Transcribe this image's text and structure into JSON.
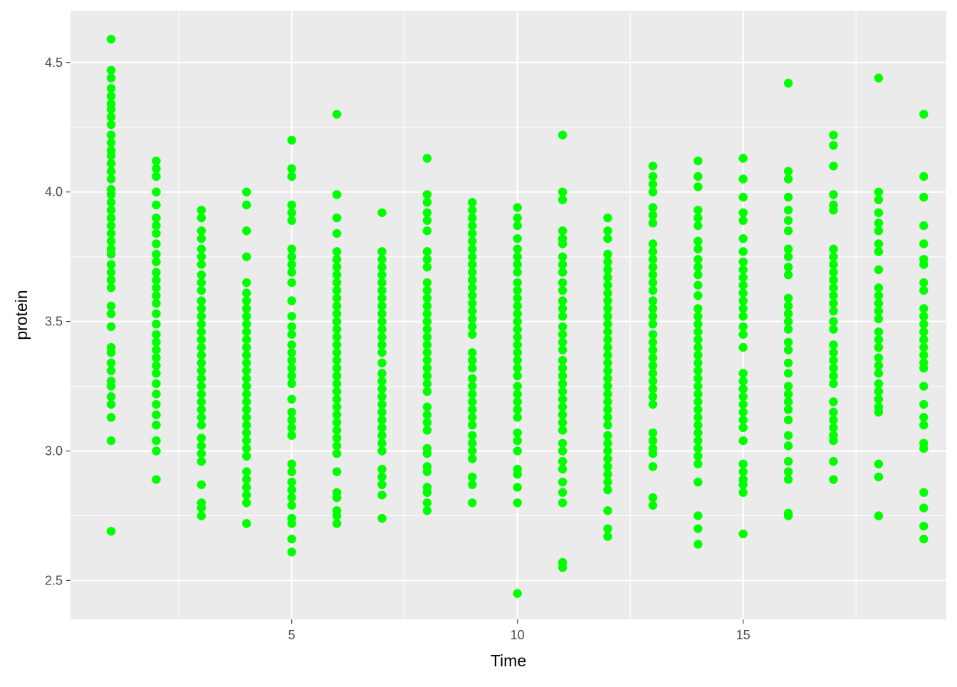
{
  "chart_data": {
    "type": "scatter",
    "title": "",
    "xlabel": "Time",
    "ylabel": "protein",
    "xlim": [
      0.1,
      19.5
    ],
    "ylim": [
      2.35,
      4.7
    ],
    "x_ticks": [
      5,
      10,
      15
    ],
    "x_tick_labels": [
      "5",
      "10",
      "15"
    ],
    "y_ticks": [
      2.5,
      3.0,
      3.5,
      4.0,
      4.5
    ],
    "y_tick_labels": [
      "2.5",
      "3.0",
      "3.5",
      "4.0",
      "4.5"
    ],
    "grid": true,
    "legend": "none",
    "point_color": "#00FF00",
    "panel_color": "#EBEBEB",
    "grid_color": "#FFFFFF",
    "series": [
      {
        "points": [
          {
            "x": 1,
            "y": [
              4.59,
              4.47,
              4.44,
              4.4,
              4.37,
              4.34,
              4.32,
              4.29,
              4.26,
              4.22,
              4.19,
              4.16,
              4.14,
              4.11,
              4.08,
              4.05,
              4.01,
              3.99,
              3.96,
              3.93,
              3.9,
              3.87,
              3.84,
              3.81,
              3.78,
              3.76,
              3.72,
              3.69,
              3.66,
              3.63,
              3.56,
              3.53,
              3.48,
              3.4,
              3.38,
              3.34,
              3.31,
              3.27,
              3.25,
              3.21,
              3.18,
              3.13,
              3.04,
              2.69
            ]
          },
          {
            "x": 2,
            "y": [
              4.12,
              4.09,
              4.06,
              4.0,
              3.95,
              3.9,
              3.87,
              3.84,
              3.8,
              3.76,
              3.73,
              3.69,
              3.66,
              3.63,
              3.6,
              3.57,
              3.53,
              3.49,
              3.45,
              3.42,
              3.39,
              3.36,
              3.33,
              3.3,
              3.26,
              3.22,
              3.18,
              3.14,
              3.1,
              3.04,
              3.0,
              2.89
            ]
          },
          {
            "x": 3,
            "y": [
              3.93,
              3.9,
              3.85,
              3.82,
              3.78,
              3.75,
              3.72,
              3.68,
              3.65,
              3.62,
              3.58,
              3.55,
              3.52,
              3.49,
              3.46,
              3.43,
              3.4,
              3.37,
              3.34,
              3.31,
              3.28,
              3.25,
              3.22,
              3.19,
              3.16,
              3.13,
              3.1,
              3.05,
              3.02,
              2.99,
              2.96,
              2.87,
              2.8,
              2.78,
              2.75
            ]
          },
          {
            "x": 4,
            "y": [
              4.0,
              3.95,
              3.85,
              3.75,
              3.65,
              3.61,
              3.58,
              3.55,
              3.52,
              3.49,
              3.46,
              3.43,
              3.4,
              3.37,
              3.34,
              3.31,
              3.28,
              3.25,
              3.22,
              3.19,
              3.16,
              3.13,
              3.1,
              3.07,
              3.04,
              3.01,
              2.98,
              2.92,
              2.89,
              2.86,
              2.83,
              2.8,
              2.72
            ]
          },
          {
            "x": 5,
            "y": [
              4.2,
              4.09,
              4.06,
              3.95,
              3.92,
              3.89,
              3.78,
              3.75,
              3.72,
              3.69,
              3.65,
              3.58,
              3.52,
              3.48,
              3.45,
              3.41,
              3.38,
              3.35,
              3.32,
              3.29,
              3.26,
              3.2,
              3.15,
              3.12,
              3.09,
              3.06,
              2.95,
              2.92,
              2.88,
              2.85,
              2.82,
              2.79,
              2.74,
              2.72,
              2.66,
              2.61
            ]
          },
          {
            "x": 6,
            "y": [
              4.3,
              3.99,
              3.9,
              3.84,
              3.77,
              3.74,
              3.71,
              3.68,
              3.65,
              3.62,
              3.59,
              3.56,
              3.53,
              3.5,
              3.47,
              3.44,
              3.41,
              3.38,
              3.35,
              3.32,
              3.29,
              3.26,
              3.23,
              3.2,
              3.17,
              3.14,
              3.11,
              3.08,
              3.05,
              3.02,
              2.99,
              2.92,
              2.84,
              2.82,
              2.77,
              2.75,
              2.72
            ]
          },
          {
            "x": 7,
            "y": [
              3.92,
              3.77,
              3.74,
              3.71,
              3.68,
              3.65,
              3.62,
              3.59,
              3.56,
              3.53,
              3.5,
              3.47,
              3.44,
              3.41,
              3.38,
              3.34,
              3.3,
              3.27,
              3.24,
              3.21,
              3.18,
              3.15,
              3.12,
              3.09,
              3.06,
              3.03,
              3.0,
              2.93,
              2.9,
              2.87,
              2.83,
              2.74
            ]
          },
          {
            "x": 8,
            "y": [
              4.13,
              3.99,
              3.96,
              3.92,
              3.89,
              3.85,
              3.77,
              3.74,
              3.71,
              3.65,
              3.62,
              3.59,
              3.56,
              3.53,
              3.5,
              3.47,
              3.44,
              3.41,
              3.38,
              3.35,
              3.32,
              3.29,
              3.26,
              3.23,
              3.17,
              3.14,
              3.11,
              3.08,
              3.01,
              2.99,
              2.94,
              2.92,
              2.86,
              2.84,
              2.8,
              2.77
            ]
          },
          {
            "x": 9,
            "y": [
              3.96,
              3.93,
              3.9,
              3.87,
              3.84,
              3.81,
              3.78,
              3.75,
              3.72,
              3.69,
              3.66,
              3.63,
              3.6,
              3.57,
              3.54,
              3.51,
              3.48,
              3.45,
              3.38,
              3.35,
              3.32,
              3.28,
              3.25,
              3.22,
              3.19,
              3.16,
              3.13,
              3.1,
              3.06,
              3.03,
              3.0,
              2.97,
              2.9,
              2.87,
              2.8
            ]
          },
          {
            "x": 10,
            "y": [
              3.94,
              3.9,
              3.87,
              3.82,
              3.78,
              3.75,
              3.72,
              3.69,
              3.65,
              3.62,
              3.59,
              3.56,
              3.53,
              3.5,
              3.47,
              3.44,
              3.41,
              3.38,
              3.35,
              3.32,
              3.29,
              3.25,
              3.22,
              3.19,
              3.16,
              3.13,
              3.07,
              3.04,
              3.0,
              2.93,
              2.91,
              2.86,
              2.8,
              2.45
            ]
          },
          {
            "x": 11,
            "y": [
              4.22,
              4.0,
              3.97,
              3.85,
              3.82,
              3.8,
              3.75,
              3.72,
              3.69,
              3.65,
              3.62,
              3.58,
              3.55,
              3.52,
              3.48,
              3.45,
              3.42,
              3.39,
              3.35,
              3.32,
              3.29,
              3.26,
              3.23,
              3.2,
              3.17,
              3.14,
              3.11,
              3.08,
              3.03,
              3.0,
              2.96,
              2.93,
              2.88,
              2.84,
              2.8,
              2.57,
              2.55
            ]
          },
          {
            "x": 12,
            "y": [
              3.9,
              3.85,
              3.82,
              3.76,
              3.73,
              3.7,
              3.67,
              3.64,
              3.61,
              3.58,
              3.55,
              3.52,
              3.49,
              3.46,
              3.43,
              3.4,
              3.37,
              3.34,
              3.31,
              3.28,
              3.25,
              3.22,
              3.19,
              3.16,
              3.13,
              3.1,
              3.06,
              3.03,
              3.0,
              2.97,
              2.94,
              2.91,
              2.88,
              2.85,
              2.77,
              2.7,
              2.67
            ]
          },
          {
            "x": 13,
            "y": [
              4.1,
              4.06,
              4.03,
              4.0,
              3.94,
              3.91,
              3.88,
              3.8,
              3.77,
              3.74,
              3.71,
              3.68,
              3.65,
              3.62,
              3.58,
              3.55,
              3.52,
              3.49,
              3.45,
              3.42,
              3.39,
              3.36,
              3.33,
              3.3,
              3.27,
              3.24,
              3.21,
              3.18,
              3.07,
              3.04,
              3.01,
              2.99,
              2.94,
              2.82,
              2.79
            ]
          },
          {
            "x": 14,
            "y": [
              4.12,
              4.06,
              4.02,
              3.93,
              3.9,
              3.87,
              3.81,
              3.78,
              3.74,
              3.71,
              3.68,
              3.64,
              3.6,
              3.55,
              3.52,
              3.49,
              3.46,
              3.43,
              3.4,
              3.37,
              3.34,
              3.31,
              3.28,
              3.25,
              3.22,
              3.19,
              3.16,
              3.13,
              3.1,
              3.07,
              3.04,
              3.01,
              2.98,
              2.95,
              2.88,
              2.75,
              2.7,
              2.64
            ]
          },
          {
            "x": 15,
            "y": [
              4.13,
              4.05,
              3.98,
              3.92,
              3.89,
              3.82,
              3.77,
              3.73,
              3.7,
              3.67,
              3.64,
              3.61,
              3.58,
              3.55,
              3.52,
              3.48,
              3.45,
              3.4,
              3.3,
              3.27,
              3.24,
              3.21,
              3.18,
              3.15,
              3.12,
              3.09,
              3.04,
              2.95,
              2.92,
              2.89,
              2.87,
              2.84,
              2.68
            ]
          },
          {
            "x": 16,
            "y": [
              4.42,
              4.08,
              4.05,
              3.98,
              3.93,
              3.89,
              3.85,
              3.78,
              3.75,
              3.71,
              3.68,
              3.59,
              3.56,
              3.53,
              3.5,
              3.47,
              3.42,
              3.39,
              3.34,
              3.3,
              3.25,
              3.22,
              3.19,
              3.16,
              3.12,
              3.06,
              3.02,
              2.96,
              2.92,
              2.89,
              2.76,
              2.75
            ]
          },
          {
            "x": 17,
            "y": [
              4.22,
              4.18,
              4.1,
              3.99,
              3.95,
              3.93,
              3.78,
              3.75,
              3.72,
              3.69,
              3.66,
              3.63,
              3.6,
              3.57,
              3.54,
              3.5,
              3.47,
              3.41,
              3.38,
              3.35,
              3.32,
              3.29,
              3.26,
              3.19,
              3.15,
              3.12,
              3.09,
              3.06,
              3.04,
              2.96,
              2.89
            ]
          },
          {
            "x": 18,
            "y": [
              4.44,
              4.0,
              3.97,
              3.92,
              3.88,
              3.85,
              3.8,
              3.77,
              3.7,
              3.63,
              3.6,
              3.57,
              3.54,
              3.51,
              3.46,
              3.43,
              3.4,
              3.36,
              3.33,
              3.3,
              3.26,
              3.23,
              3.2,
              3.17,
              3.15,
              2.95,
              2.9,
              2.75
            ]
          },
          {
            "x": 19,
            "y": [
              4.3,
              4.06,
              3.98,
              3.87,
              3.8,
              3.74,
              3.72,
              3.65,
              3.62,
              3.55,
              3.52,
              3.49,
              3.46,
              3.43,
              3.4,
              3.37,
              3.34,
              3.32,
              3.25,
              3.18,
              3.13,
              3.1,
              3.03,
              3.01,
              2.84,
              2.78,
              2.71,
              2.66
            ]
          }
        ]
      }
    ]
  }
}
